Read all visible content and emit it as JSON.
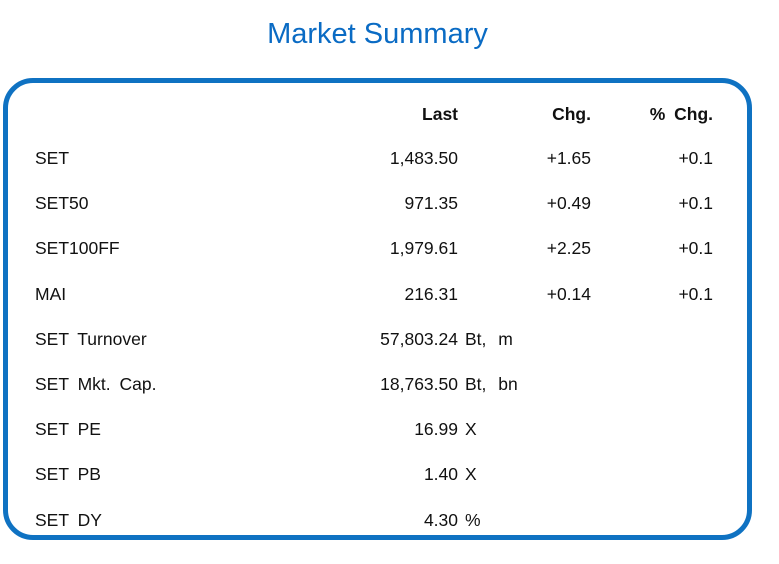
{
  "title": "Market Summary",
  "colors": {
    "title_blue": "#0a6bc4",
    "border_blue": "#0f72c2",
    "text": "#111111"
  },
  "table": {
    "headers": {
      "last": "Last",
      "chg": "Chg.",
      "pct": "% Chg."
    },
    "rows": [
      {
        "label": "SET",
        "last": "1,483.50",
        "unit": "",
        "chg": "+1.65",
        "pct": "+0.1"
      },
      {
        "label": "SET50",
        "last": "971.35",
        "unit": "",
        "chg": "+0.49",
        "pct": "+0.1"
      },
      {
        "label": "SET100FF",
        "last": "1,979.61",
        "unit": "",
        "chg": "+2.25",
        "pct": "+0.1"
      },
      {
        "label": "MAI",
        "last": "216.31",
        "unit": "",
        "chg": "+0.14",
        "pct": "+0.1"
      },
      {
        "label": "SET Turnover",
        "last": "57,803.24",
        "unit": "Bt, m",
        "chg": "",
        "pct": ""
      },
      {
        "label": "SET Mkt. Cap.",
        "last": "18,763.50",
        "unit": "Bt, bn",
        "chg": "",
        "pct": ""
      },
      {
        "label": "SET PE",
        "last": "16.99",
        "unit": "X",
        "chg": "",
        "pct": ""
      },
      {
        "label": "SET PB",
        "last": "1.40",
        "unit": "X",
        "chg": "",
        "pct": ""
      },
      {
        "label": "SET DY",
        "last": "4.30",
        "unit": "%",
        "chg": "",
        "pct": ""
      }
    ]
  },
  "chart_data": {
    "type": "table",
    "title": "Market Summary",
    "columns": [
      "",
      "Last",
      "Chg.",
      "% Chg."
    ],
    "rows": [
      [
        "SET",
        "1,483.50",
        "+1.65",
        "+0.1"
      ],
      [
        "SET50",
        "971.35",
        "+0.49",
        "+0.1"
      ],
      [
        "SET100FF",
        "1,979.61",
        "+2.25",
        "+0.1"
      ],
      [
        "MAI",
        "216.31",
        "+0.14",
        "+0.1"
      ],
      [
        "SET Turnover",
        "57,803.24 Bt, m",
        "",
        ""
      ],
      [
        "SET Mkt. Cap.",
        "18,763.50 Bt, bn",
        "",
        ""
      ],
      [
        "SET PE",
        "16.99 X",
        "",
        ""
      ],
      [
        "SET PB",
        "1.40 X",
        "",
        ""
      ],
      [
        "SET DY",
        "4.30 %",
        "",
        ""
      ]
    ],
    "layout": {
      "number_alignment": "right",
      "header_style": "bold",
      "border": "rounded-blue-card"
    }
  }
}
